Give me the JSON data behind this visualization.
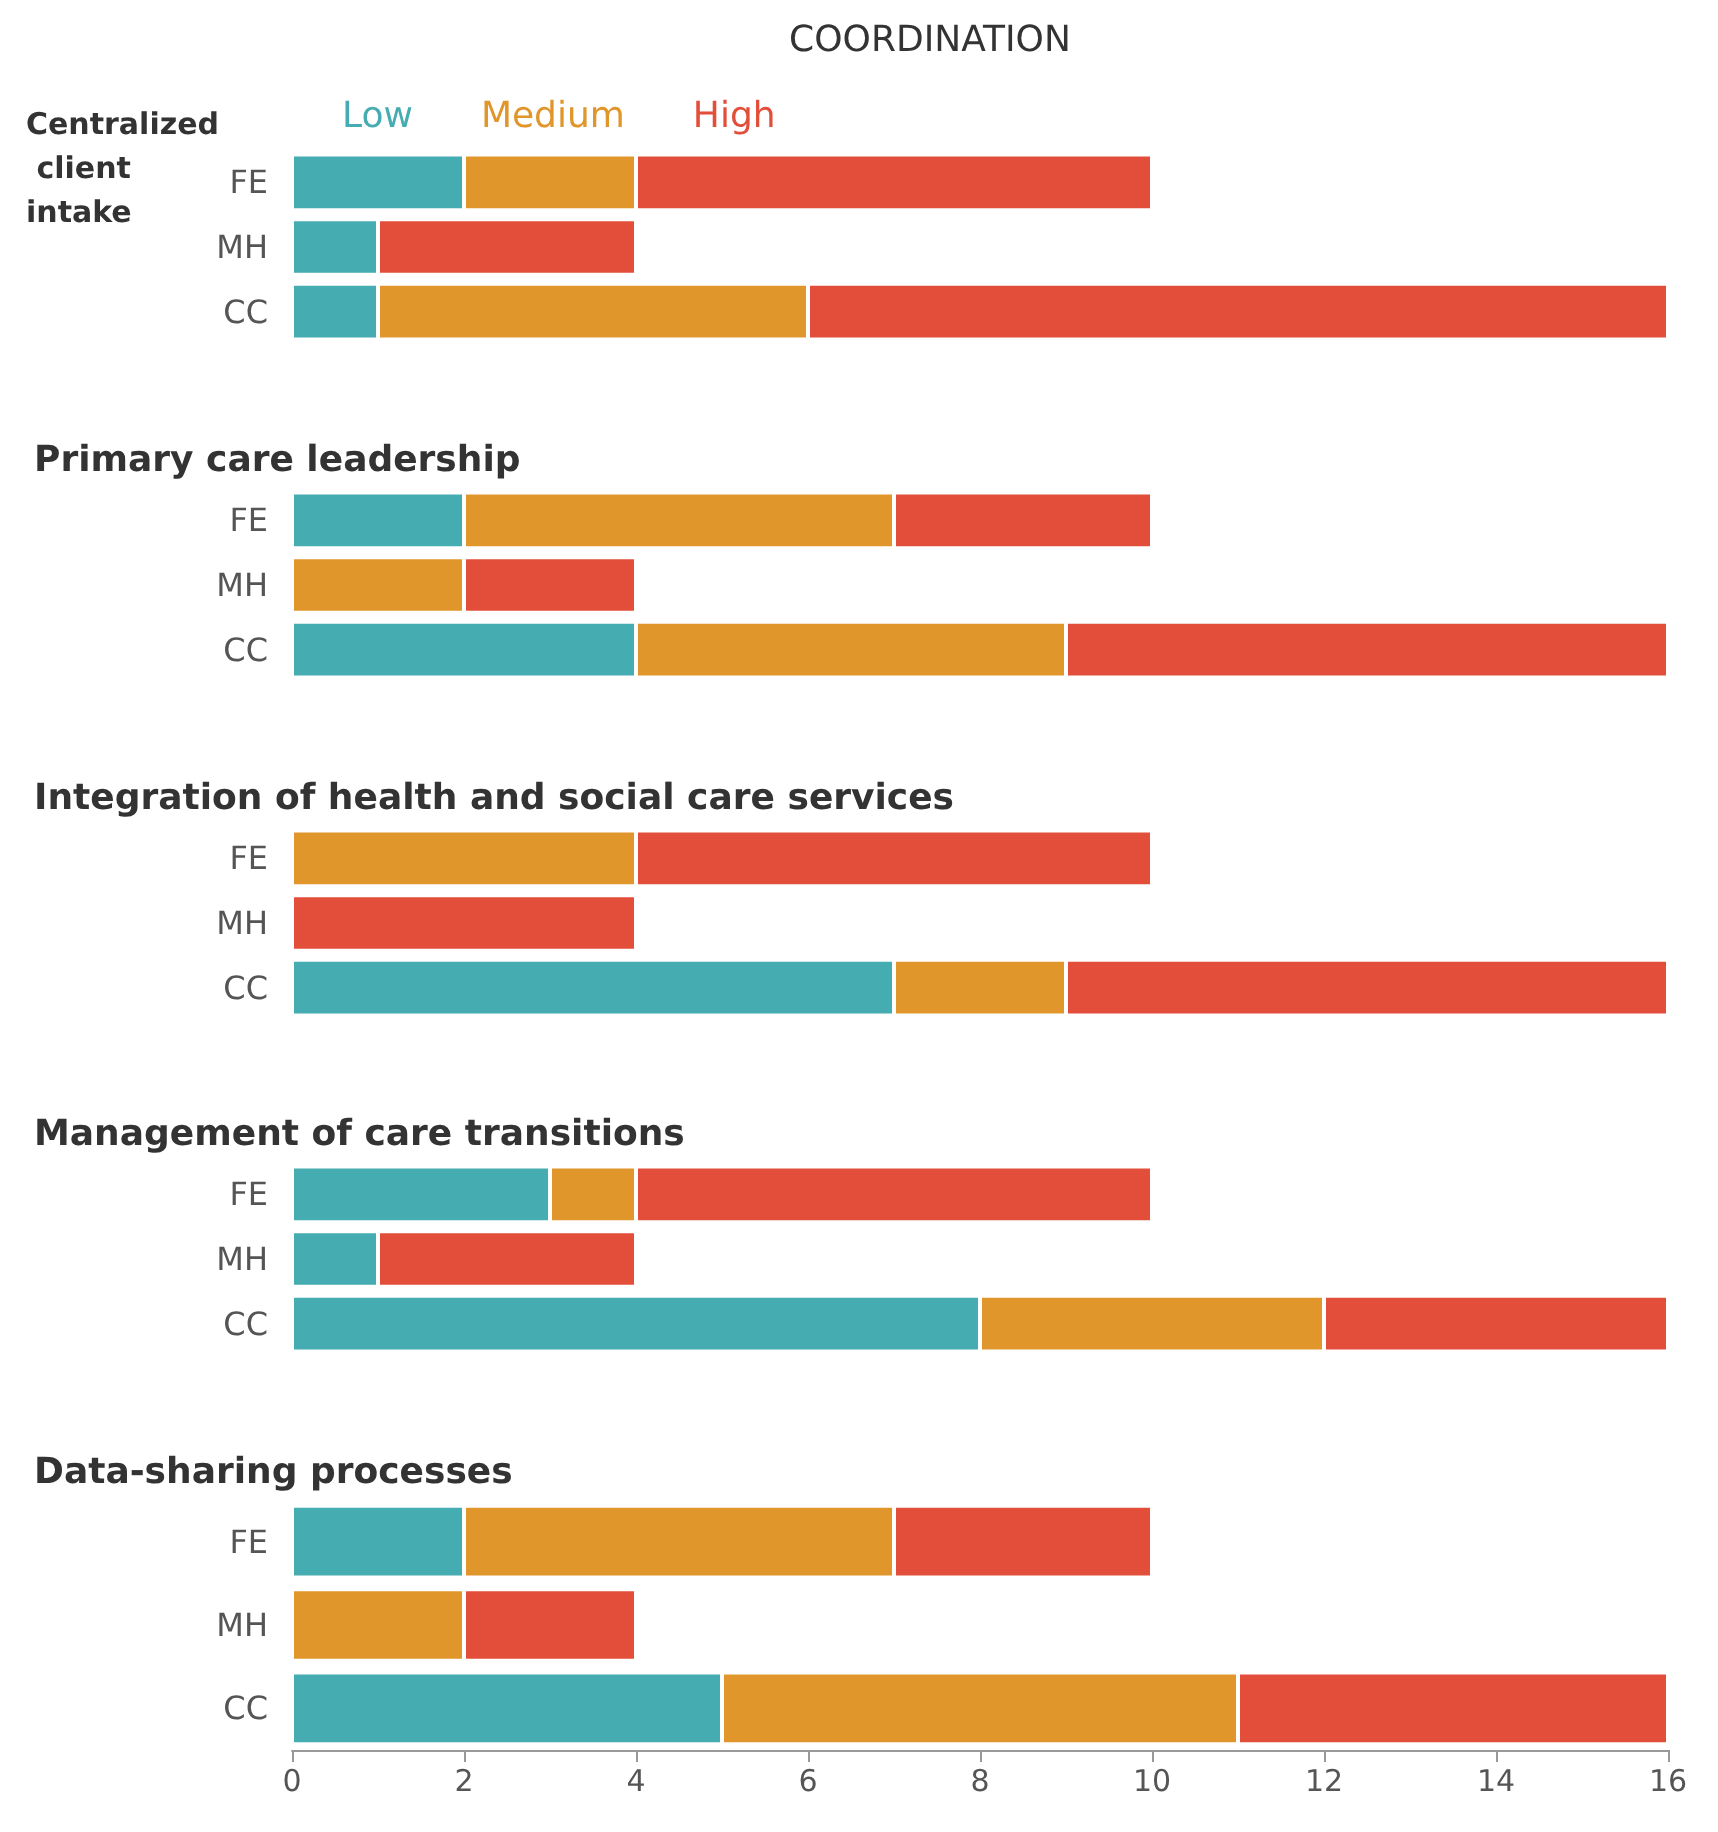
{
  "chart_data": [
    {
      "type": "bar",
      "orientation": "horizontal",
      "stacked": true,
      "title": "COORDINATION",
      "subtitle": "Centralized client intake",
      "categories": [
        "FE",
        "MH",
        "CC"
      ],
      "legend": "top left",
      "tick_labels": "y",
      "xlim": [
        0,
        16
      ],
      "xticks": [
        0,
        2,
        4,
        6,
        8,
        10,
        12,
        14,
        16
      ],
      "series": [
        {
          "name": "Low",
          "color": "#45adb1",
          "values": [
            2,
            1,
            1
          ]
        },
        {
          "name": "Medium",
          "color": "#e0962a",
          "values": [
            2,
            0,
            5
          ]
        },
        {
          "name": "High",
          "color": "#e34e3a",
          "values": [
            6,
            3,
            10
          ]
        }
      ]
    },
    {
      "type": "bar",
      "orientation": "horizontal",
      "stacked": true,
      "title": "Primary care leadership",
      "categories": [
        "FE",
        "MH",
        "CC"
      ],
      "tick_labels": "y",
      "xlim": [
        0,
        16
      ],
      "xticks": [
        0,
        2,
        4,
        6,
        8,
        10,
        12,
        14,
        16
      ],
      "series": [
        {
          "color": "#45adb1",
          "values": [
            2,
            0,
            4
          ]
        },
        {
          "color": "#e0962a",
          "values": [
            5,
            2,
            5
          ]
        },
        {
          "color": "#e34e3a",
          "values": [
            3,
            2,
            7
          ]
        }
      ]
    },
    {
      "type": "bar",
      "orientation": "horizontal",
      "stacked": true,
      "title": "Integration of health and social care services",
      "categories": [
        "FE",
        "MH",
        "CC"
      ],
      "tick_labels": "y",
      "xlim": [
        0,
        16
      ],
      "xticks": [
        0,
        2,
        4,
        6,
        8,
        10,
        12,
        14,
        16
      ],
      "series": [
        {
          "color": "#45adb1",
          "values": [
            0,
            0,
            7
          ]
        },
        {
          "color": "#e0962a",
          "values": [
            4,
            0,
            2
          ]
        },
        {
          "color": "#e34e3a",
          "values": [
            6,
            4,
            7
          ]
        }
      ]
    },
    {
      "type": "bar",
      "orientation": "horizontal",
      "stacked": true,
      "title": "Management of care transitions",
      "categories": [
        "FE",
        "MH",
        "CC"
      ],
      "tick_labels": "y",
      "xlim": [
        0,
        16
      ],
      "xticks": [
        0,
        2,
        4,
        6,
        8,
        10,
        12,
        14,
        16
      ],
      "series": [
        {
          "color": "#45adb1",
          "values": [
            3,
            1,
            8
          ]
        },
        {
          "color": "#e0962a",
          "values": [
            1,
            0,
            4
          ]
        },
        {
          "color": "#e34e3a",
          "values": [
            6,
            3,
            4
          ]
        }
      ]
    },
    {
      "type": "bar",
      "orientation": "horizontal",
      "stacked": true,
      "title": "Data-sharing processes",
      "categories": [
        "FE",
        "MH",
        "CC"
      ],
      "xlim": [
        0,
        16
      ],
      "xticks": [
        0,
        2,
        4,
        6,
        8,
        10,
        12,
        14,
        16
      ],
      "series": [
        {
          "color": "#45adb1",
          "values": [
            2,
            0,
            5
          ]
        },
        {
          "color": "#e0962a",
          "values": [
            5,
            2,
            6
          ]
        },
        {
          "color": "#e34e3a",
          "values": [
            3,
            2,
            5
          ]
        }
      ]
    }
  ]
}
